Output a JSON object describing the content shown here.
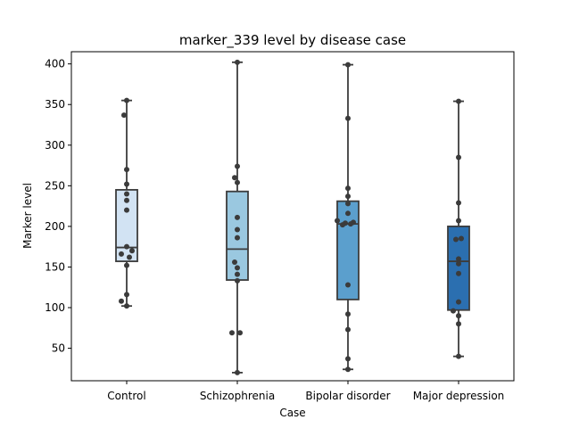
{
  "chart_data": {
    "type": "box",
    "title": "marker_339 level by disease case",
    "xlabel": "Case",
    "ylabel": "Marker level",
    "categories": [
      "Control",
      "Schizophrenia",
      "Bipolar disorder",
      "Major depression"
    ],
    "ylim": [
      10,
      415
    ],
    "yticks": [
      50,
      100,
      150,
      200,
      250,
      300,
      350,
      400
    ],
    "grid": false,
    "colors": [
      "#d2e3f3",
      "#9ac8e0",
      "#5b9fcd",
      "#2b6fb0"
    ],
    "point_color": "#3b3b3b",
    "boxes": [
      {
        "category": "Control",
        "whisker_low": 102,
        "q1": 157,
        "median": 174,
        "q3": 245,
        "whisker_high": 355
      },
      {
        "category": "Schizophrenia",
        "whisker_low": 20,
        "q1": 134,
        "median": 172,
        "q3": 243,
        "whisker_high": 402
      },
      {
        "category": "Bipolar disorder",
        "whisker_low": 24,
        "q1": 110,
        "median": 203,
        "q3": 231,
        "whisker_high": 399
      },
      {
        "category": "Major depression",
        "whisker_low": 40,
        "q1": 97,
        "median": 157,
        "q3": 200,
        "whisker_high": 354
      }
    ],
    "points": [
      {
        "category": "Control",
        "values": [
          355,
          337,
          270,
          252,
          240,
          232,
          220,
          175,
          170,
          166,
          162,
          152,
          116,
          108,
          102
        ],
        "offsets": [
          0,
          -1,
          0,
          0,
          0,
          0,
          0,
          0,
          2,
          -2,
          1,
          0,
          0,
          -2,
          0
        ]
      },
      {
        "category": "Schizophrenia",
        "values": [
          402,
          274,
          260,
          254,
          211,
          196,
          186,
          156,
          149,
          141,
          133,
          69,
          69,
          20
        ],
        "offsets": [
          0,
          0,
          -1,
          0,
          0,
          0,
          0,
          -1,
          0,
          0,
          0,
          -2,
          1,
          0
        ]
      },
      {
        "category": "Bipolar disorder",
        "values": [
          399,
          333,
          247,
          237,
          228,
          216,
          207,
          205,
          204,
          203,
          202,
          128,
          92,
          73,
          37,
          24
        ],
        "offsets": [
          0,
          0,
          0,
          0,
          0,
          0,
          -4,
          2,
          -1,
          1,
          -2,
          0,
          0,
          0,
          0,
          0
        ]
      },
      {
        "category": "Major depression",
        "values": [
          354,
          285,
          229,
          207,
          185,
          184,
          160,
          154,
          142,
          107,
          96,
          90,
          80,
          40
        ],
        "offsets": [
          0,
          0,
          0,
          0,
          1,
          -1,
          0,
          0,
          0,
          0,
          -2,
          0,
          0,
          0
        ]
      }
    ]
  }
}
